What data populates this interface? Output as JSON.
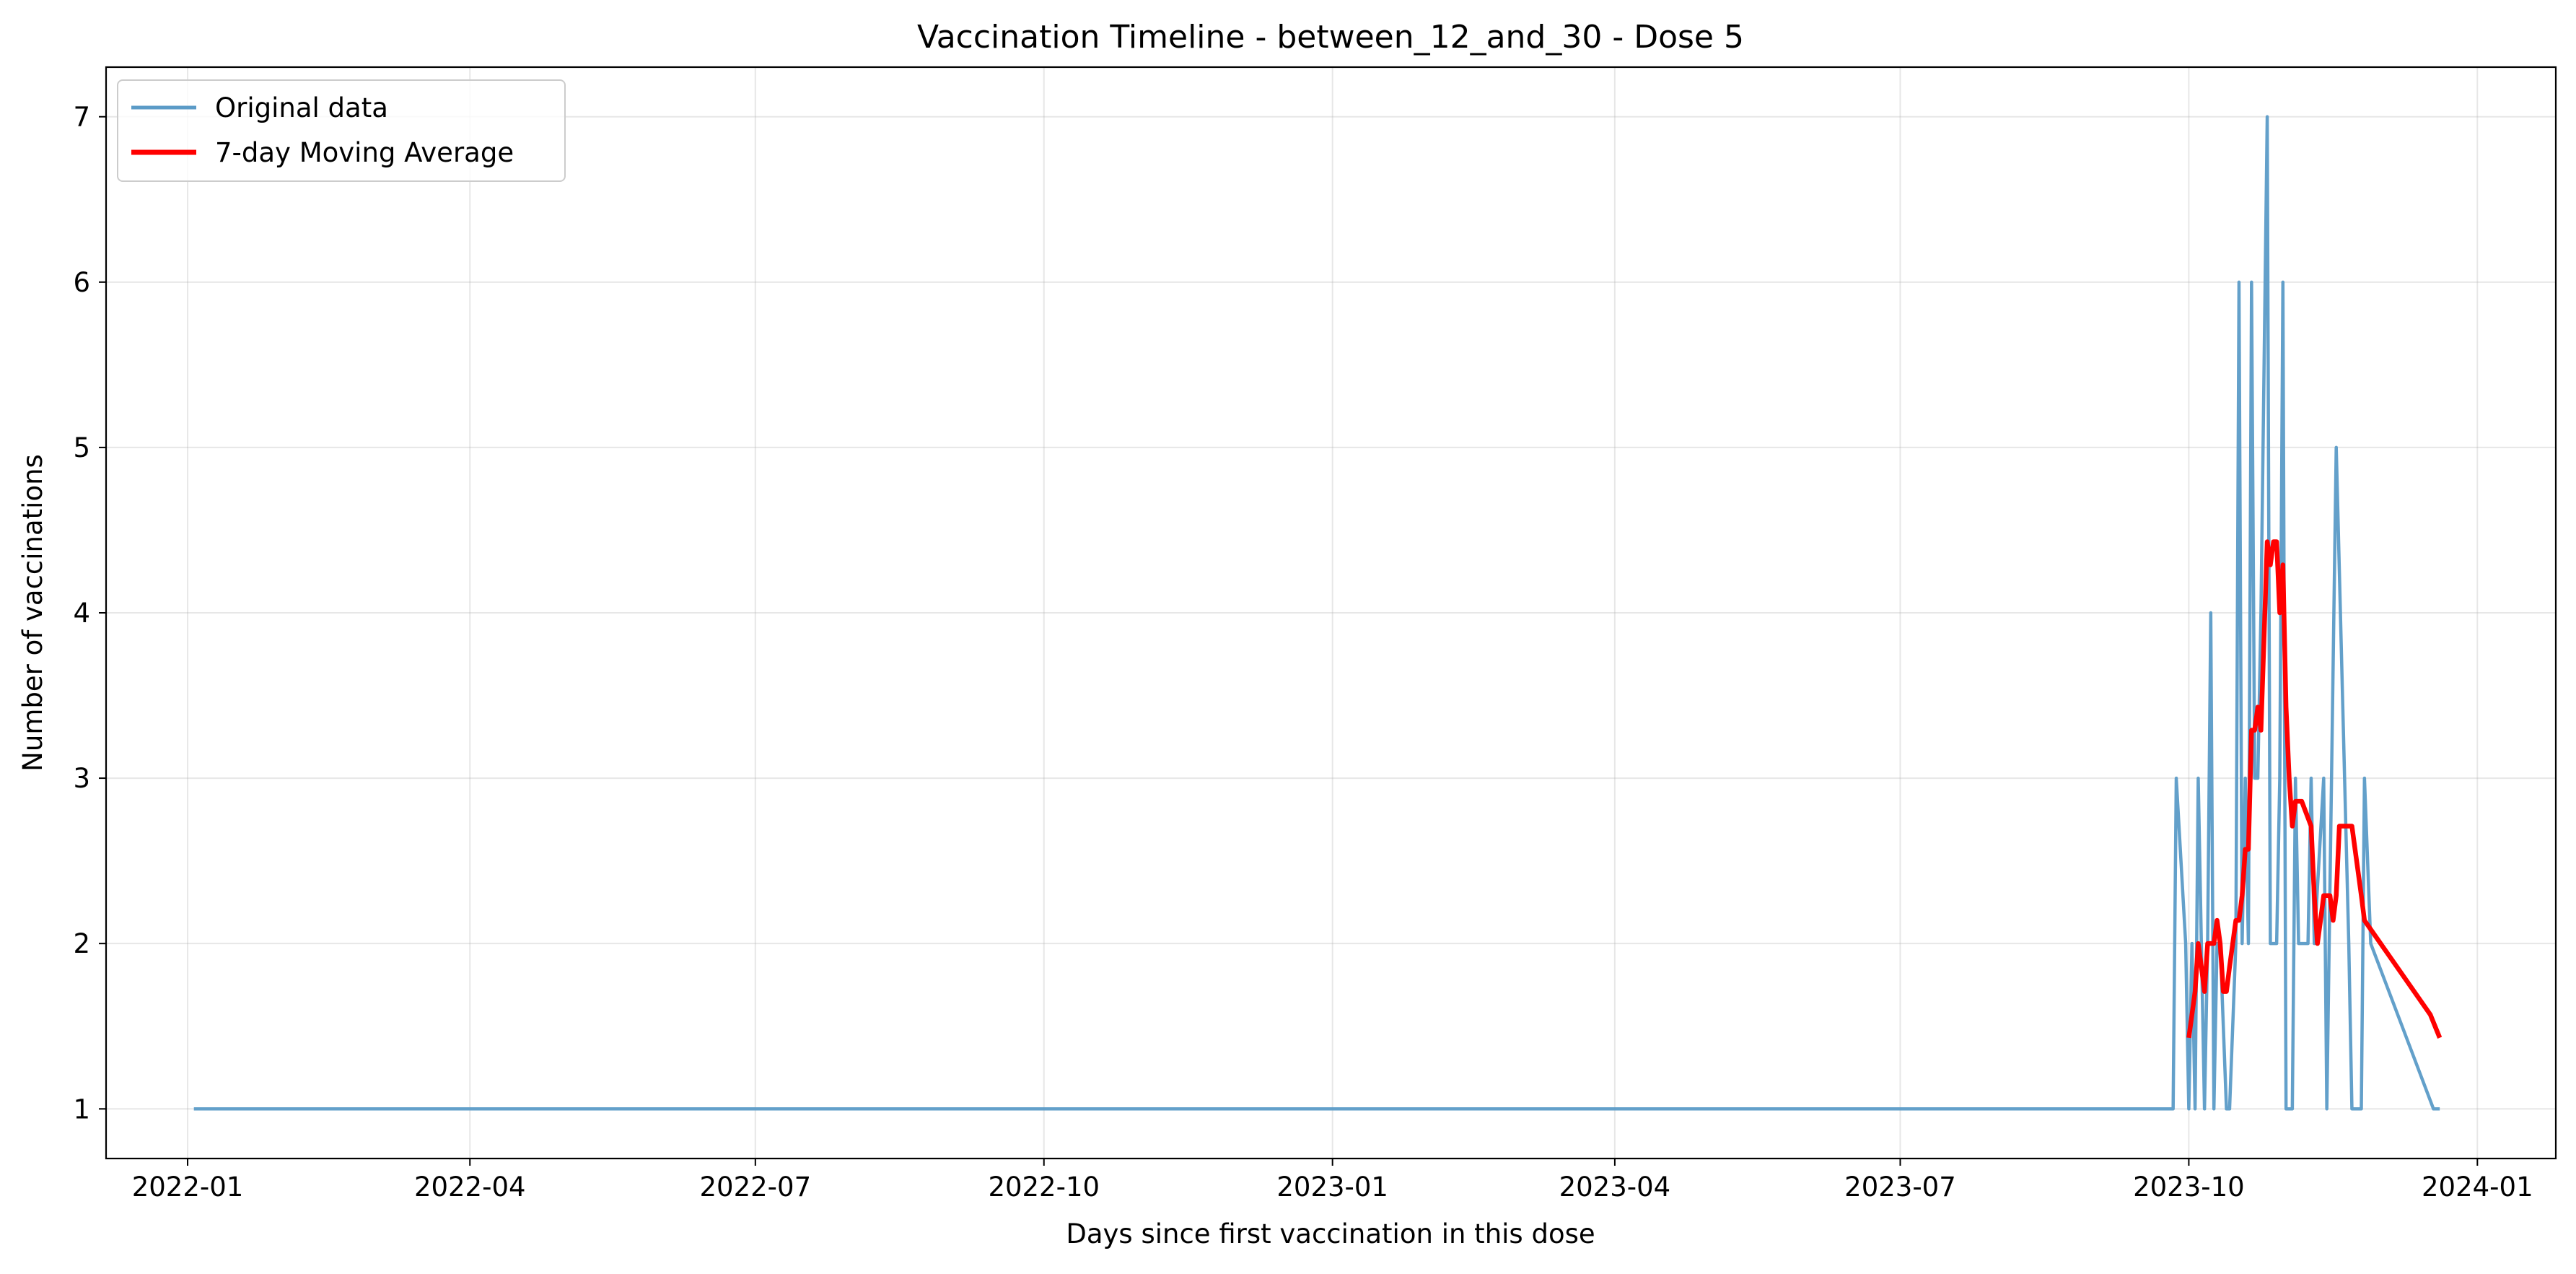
{
  "chart_data": {
    "type": "line",
    "title": "Vaccination Timeline - between_12_and_30 - Dose 5",
    "xlabel": "Days since first vaccination in this dose",
    "ylabel": "Number of vaccinations",
    "x_axis_type": "date",
    "xlim": [
      "2021-12-06",
      "2024-01-26"
    ],
    "ylim": [
      0.7,
      7.3
    ],
    "x_ticks": [
      "2022-01",
      "2022-04",
      "2022-07",
      "2022-10",
      "2023-01",
      "2023-04",
      "2023-07",
      "2023-10",
      "2024-01"
    ],
    "y_ticks": [
      1,
      2,
      3,
      4,
      5,
      6,
      7
    ],
    "grid": true,
    "legend_position": "upper-left",
    "series": [
      {
        "name": "Original data",
        "color": "#5b9bc7",
        "points": [
          [
            "2022-01-03",
            1
          ],
          [
            "2023-09-26",
            1
          ],
          [
            "2023-09-27",
            3
          ],
          [
            "2023-09-30",
            2
          ],
          [
            "2023-10-01",
            1
          ],
          [
            "2023-10-02",
            2
          ],
          [
            "2023-10-03",
            1
          ],
          [
            "2023-10-04",
            3
          ],
          [
            "2023-10-05",
            2
          ],
          [
            "2023-10-06",
            1
          ],
          [
            "2023-10-07",
            2
          ],
          [
            "2023-10-08",
            4
          ],
          [
            "2023-10-09",
            1
          ],
          [
            "2023-10-10",
            2
          ],
          [
            "2023-10-11",
            2
          ],
          [
            "2023-10-13",
            1
          ],
          [
            "2023-10-14",
            1
          ],
          [
            "2023-10-16",
            2
          ],
          [
            "2023-10-17",
            6
          ],
          [
            "2023-10-18",
            2
          ],
          [
            "2023-10-19",
            3
          ],
          [
            "2023-10-20",
            2
          ],
          [
            "2023-10-21",
            6
          ],
          [
            "2023-10-22",
            3
          ],
          [
            "2023-10-23",
            3
          ],
          [
            "2023-10-24",
            4
          ],
          [
            "2023-10-26",
            7
          ],
          [
            "2023-10-27",
            2
          ],
          [
            "2023-10-28",
            2
          ],
          [
            "2023-10-29",
            2
          ],
          [
            "2023-10-30",
            3
          ],
          [
            "2023-10-31",
            6
          ],
          [
            "2023-11-01",
            1
          ],
          [
            "2023-11-02",
            1
          ],
          [
            "2023-11-03",
            1
          ],
          [
            "2023-11-04",
            3
          ],
          [
            "2023-11-05",
            2
          ],
          [
            "2023-11-07",
            2
          ],
          [
            "2023-11-08",
            2
          ],
          [
            "2023-11-09",
            3
          ],
          [
            "2023-11-10",
            2
          ],
          [
            "2023-11-13",
            3
          ],
          [
            "2023-11-14",
            1
          ],
          [
            "2023-11-17",
            5
          ],
          [
            "2023-11-21",
            2
          ],
          [
            "2023-11-22",
            1
          ],
          [
            "2023-11-25",
            1
          ],
          [
            "2023-11-26",
            3
          ],
          [
            "2023-11-28",
            2
          ],
          [
            "2023-12-18",
            1
          ],
          [
            "2023-12-20",
            1
          ]
        ]
      },
      {
        "name": "7-day Moving Average",
        "color": "#ff0000",
        "points": [
          [
            "2023-10-01",
            1.43
          ],
          [
            "2023-10-02",
            1.57
          ],
          [
            "2023-10-03",
            1.71
          ],
          [
            "2023-10-04",
            2.0
          ],
          [
            "2023-10-05",
            1.86
          ],
          [
            "2023-10-06",
            1.71
          ],
          [
            "2023-10-07",
            2.0
          ],
          [
            "2023-10-08",
            2.0
          ],
          [
            "2023-10-09",
            2.0
          ],
          [
            "2023-10-10",
            2.14
          ],
          [
            "2023-10-11",
            2.0
          ],
          [
            "2023-10-12",
            1.71
          ],
          [
            "2023-10-13",
            1.71
          ],
          [
            "2023-10-14",
            1.86
          ],
          [
            "2023-10-16",
            2.14
          ],
          [
            "2023-10-17",
            2.14
          ],
          [
            "2023-10-18",
            2.29
          ],
          [
            "2023-10-19",
            2.57
          ],
          [
            "2023-10-20",
            2.57
          ],
          [
            "2023-10-21",
            3.29
          ],
          [
            "2023-10-22",
            3.29
          ],
          [
            "2023-10-23",
            3.43
          ],
          [
            "2023-10-24",
            3.29
          ],
          [
            "2023-10-25",
            3.86
          ],
          [
            "2023-10-26",
            4.43
          ],
          [
            "2023-10-27",
            4.29
          ],
          [
            "2023-10-28",
            4.43
          ],
          [
            "2023-10-29",
            4.43
          ],
          [
            "2023-10-30",
            4.0
          ],
          [
            "2023-10-31",
            4.29
          ],
          [
            "2023-11-01",
            3.43
          ],
          [
            "2023-11-02",
            3.0
          ],
          [
            "2023-11-03",
            2.71
          ],
          [
            "2023-11-04",
            2.86
          ],
          [
            "2023-11-06",
            2.86
          ],
          [
            "2023-11-09",
            2.71
          ],
          [
            "2023-11-10",
            2.29
          ],
          [
            "2023-11-11",
            2.0
          ],
          [
            "2023-11-12",
            2.14
          ],
          [
            "2023-11-13",
            2.29
          ],
          [
            "2023-11-15",
            2.29
          ],
          [
            "2023-11-16",
            2.14
          ],
          [
            "2023-11-17",
            2.29
          ],
          [
            "2023-11-18",
            2.71
          ],
          [
            "2023-11-20",
            2.71
          ],
          [
            "2023-11-22",
            2.71
          ],
          [
            "2023-11-23",
            2.57
          ],
          [
            "2023-11-25",
            2.29
          ],
          [
            "2023-11-26",
            2.14
          ],
          [
            "2023-12-17",
            1.57
          ],
          [
            "2023-12-20",
            1.43
          ]
        ]
      }
    ]
  }
}
